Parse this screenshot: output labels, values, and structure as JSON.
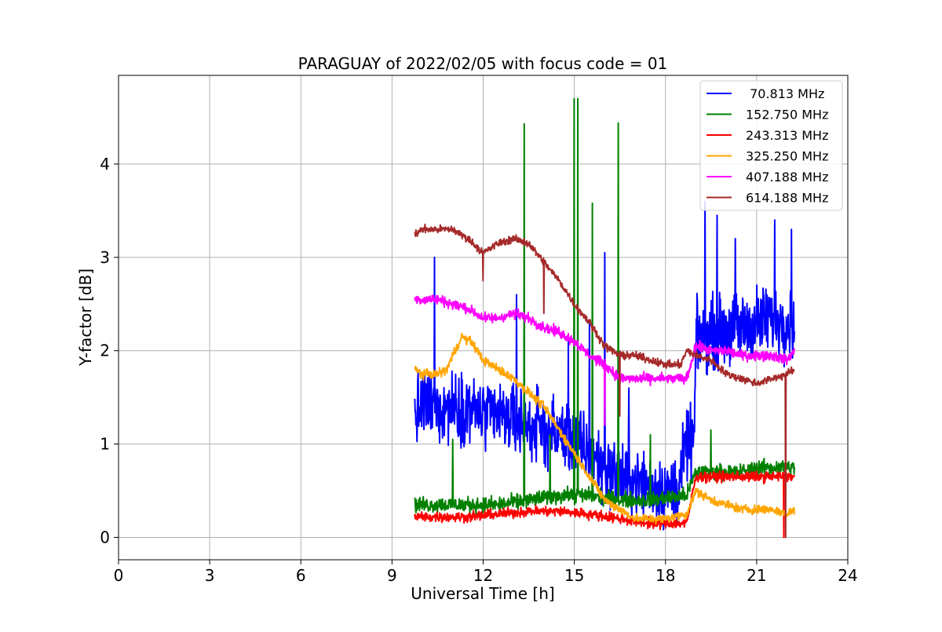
{
  "chart_data": {
    "type": "line",
    "title": "PARAGUAY of 2022/02/05 with focus code = 01",
    "xlabel": "Universal Time [h]",
    "ylabel": "Y-factor [dB]",
    "xlim": [
      0,
      24
    ],
    "ylim": [
      -0.24,
      4.95
    ],
    "xticks": [
      0,
      3,
      6,
      9,
      12,
      15,
      18,
      21,
      24
    ],
    "yticks": [
      0,
      1,
      2,
      3,
      4
    ],
    "xtick_labels": [
      "0",
      "3",
      "6",
      "9",
      "12",
      "15",
      "18",
      "21",
      "24"
    ],
    "ytick_labels": [
      "0",
      "1",
      "2",
      "3",
      "4"
    ],
    "grid": true,
    "legend_position": "top-right",
    "series": [
      {
        "name": " 70.813 MHz",
        "color": "#0000ff",
        "noise": 0.55,
        "x": [
          9.75,
          10.0,
          10.5,
          11.0,
          11.5,
          12.0,
          12.5,
          13.0,
          13.5,
          14.0,
          14.5,
          15.0,
          15.5,
          16.0,
          16.5,
          17.0,
          17.5,
          18.0,
          18.4,
          18.7,
          18.95,
          19.0,
          19.5,
          20.0,
          20.5,
          21.0,
          21.5,
          22.0,
          22.25
        ],
        "y": [
          1.3,
          1.4,
          1.4,
          1.4,
          1.4,
          1.3,
          1.3,
          1.25,
          1.2,
          1.15,
          1.1,
          1.05,
          0.9,
          0.75,
          0.65,
          0.6,
          0.55,
          0.5,
          0.5,
          1.0,
          1.05,
          2.1,
          2.2,
          2.2,
          2.25,
          2.3,
          2.35,
          2.3,
          2.3
        ],
        "spikes": [
          [
            10.4,
            3.0
          ],
          [
            13.1,
            2.6
          ],
          [
            14.8,
            2.1
          ],
          [
            15.5,
            2.3
          ],
          [
            16.0,
            3.05
          ],
          [
            16.8,
            1.6
          ],
          [
            19.3,
            3.6
          ],
          [
            19.7,
            3.45
          ],
          [
            20.3,
            3.2
          ],
          [
            21.6,
            3.4
          ],
          [
            22.15,
            3.3
          ]
        ]
      },
      {
        "name": "152.750 MHz",
        "color": "#008000",
        "noise": 0.12,
        "x": [
          9.75,
          10.5,
          11.5,
          12.5,
          13.5,
          14.5,
          15.5,
          16.5,
          17.5,
          18.7,
          19.0,
          19.5,
          20.0,
          20.5,
          21.0,
          21.5,
          22.0,
          22.25
        ],
        "y": [
          0.35,
          0.35,
          0.35,
          0.35,
          0.4,
          0.45,
          0.45,
          0.4,
          0.4,
          0.45,
          0.7,
          0.7,
          0.7,
          0.7,
          0.75,
          0.75,
          0.75,
          0.75
        ],
        "spikes": [
          [
            13.35,
            4.43
          ],
          [
            15.0,
            4.7
          ],
          [
            15.12,
            4.7
          ],
          [
            15.6,
            3.58
          ],
          [
            16.45,
            4.44
          ],
          [
            11.0,
            1.05
          ],
          [
            14.2,
            1.1
          ],
          [
            17.5,
            1.1
          ],
          [
            19.5,
            1.15
          ]
        ]
      },
      {
        "name": "243.313 MHz",
        "color": "#ff0000",
        "noise": 0.08,
        "x": [
          9.75,
          10.5,
          11.5,
          12.5,
          13.5,
          14.5,
          15.5,
          16.5,
          17.5,
          18.0,
          18.7,
          19.0,
          19.5,
          20.0,
          20.5,
          21.0,
          21.5,
          22.0,
          22.25
        ],
        "y": [
          0.22,
          0.22,
          0.22,
          0.25,
          0.28,
          0.28,
          0.25,
          0.2,
          0.15,
          0.15,
          0.15,
          0.65,
          0.65,
          0.65,
          0.65,
          0.65,
          0.65,
          0.65,
          0.65
        ],
        "spikes": [
          [
            21.9,
            0.0
          ]
        ]
      },
      {
        "name": "325.250 MHz",
        "color": "#ffa500",
        "noise": 0.07,
        "x": [
          9.75,
          10.0,
          10.5,
          10.8,
          11.0,
          11.3,
          11.6,
          12.0,
          12.5,
          13.0,
          13.5,
          14.0,
          14.5,
          15.0,
          15.5,
          16.0,
          16.5,
          17.0,
          17.5,
          18.0,
          18.7,
          19.0,
          19.5,
          20.0,
          20.5,
          21.0,
          21.5,
          22.0,
          22.25
        ],
        "y": [
          1.8,
          1.75,
          1.75,
          1.8,
          1.95,
          2.15,
          2.1,
          1.9,
          1.8,
          1.7,
          1.55,
          1.4,
          1.15,
          0.9,
          0.65,
          0.4,
          0.3,
          0.2,
          0.2,
          0.2,
          0.25,
          0.5,
          0.4,
          0.35,
          0.3,
          0.3,
          0.3,
          0.25,
          0.3
        ],
        "spikes": []
      },
      {
        "name": "407.188 MHz",
        "color": "#ff00ff",
        "noise": 0.08,
        "x": [
          9.75,
          10.5,
          11.0,
          11.5,
          12.0,
          12.5,
          13.0,
          13.5,
          14.0,
          14.5,
          15.0,
          15.5,
          16.0,
          16.5,
          17.0,
          17.5,
          18.0,
          18.7,
          19.0,
          19.5,
          20.0,
          20.5,
          21.0,
          21.5,
          22.0,
          22.25
        ],
        "y": [
          2.55,
          2.55,
          2.5,
          2.45,
          2.35,
          2.35,
          2.4,
          2.35,
          2.25,
          2.2,
          2.1,
          1.95,
          1.85,
          1.7,
          1.7,
          1.7,
          1.7,
          1.7,
          2.05,
          2.0,
          2.0,
          1.95,
          1.95,
          1.95,
          1.9,
          2.0
        ],
        "spikes": [
          [
            16.0,
            1.2
          ]
        ]
      },
      {
        "name": "614.188 MHz",
        "color": "#a52a2a",
        "noise": 0.06,
        "x": [
          9.75,
          10.0,
          10.5,
          11.0,
          11.5,
          12.0,
          12.5,
          13.0,
          13.5,
          14.0,
          14.5,
          15.0,
          15.5,
          16.0,
          16.5,
          17.0,
          17.5,
          18.0,
          18.5,
          18.7,
          19.0,
          19.5,
          20.0,
          20.5,
          21.0,
          21.5,
          22.0,
          22.25
        ],
        "y": [
          3.25,
          3.3,
          3.3,
          3.3,
          3.2,
          3.05,
          3.15,
          3.2,
          3.15,
          2.95,
          2.75,
          2.5,
          2.3,
          2.05,
          1.95,
          1.95,
          1.9,
          1.85,
          1.85,
          2.0,
          1.95,
          1.9,
          1.75,
          1.7,
          1.65,
          1.7,
          1.75,
          1.8
        ],
        "spikes": [
          [
            12.0,
            2.75
          ],
          [
            14.0,
            2.4
          ],
          [
            16.5,
            1.3
          ],
          [
            21.95,
            0.0
          ]
        ]
      }
    ]
  }
}
